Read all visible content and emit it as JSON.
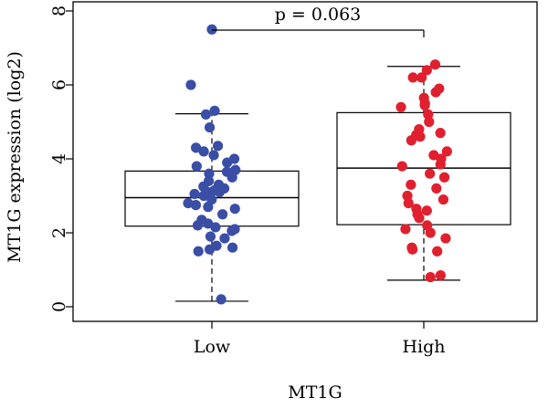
{
  "chart_data": {
    "type": "box",
    "xlabel": "MT1G",
    "ylabel": "MT1G expression (log2)",
    "categories": [
      "Low",
      "High"
    ],
    "ylim": [
      -0.2,
      8.2
    ],
    "yticks": [
      0,
      2,
      4,
      6,
      8
    ],
    "annotation": "p = 0.063",
    "boxes": [
      {
        "category": "Low",
        "whisker_low": 0.15,
        "q1": 2.18,
        "median": 2.95,
        "q3": 3.67,
        "whisker_high": 5.22,
        "outliers": [
          6.0,
          7.5
        ]
      },
      {
        "category": "High",
        "whisker_low": 0.72,
        "q1": 2.22,
        "median": 3.75,
        "q3": 5.25,
        "whisker_high": 6.5,
        "outliers": []
      }
    ],
    "series": [
      {
        "category": "Low",
        "color": "#3b4ea6",
        "points": [
          7.5,
          6.0,
          5.3,
          5.2,
          4.85,
          4.35,
          4.3,
          4.2,
          4.1,
          4.0,
          3.9,
          3.8,
          3.7,
          3.65,
          3.6,
          3.5,
          3.4,
          3.3,
          3.25,
          3.2,
          3.15,
          3.1,
          3.1,
          3.05,
          3.0,
          2.9,
          2.8,
          2.75,
          2.7,
          2.65,
          2.5,
          2.35,
          2.25,
          2.2,
          2.15,
          2.1,
          2.05,
          1.9,
          1.85,
          1.65,
          1.6,
          1.55,
          1.5,
          0.2
        ]
      },
      {
        "category": "High",
        "color": "#e0202e",
        "points": [
          6.55,
          6.4,
          6.2,
          6.2,
          5.9,
          5.8,
          5.65,
          5.5,
          5.45,
          5.4,
          5.2,
          5.0,
          4.8,
          4.7,
          4.65,
          4.6,
          4.5,
          4.2,
          4.1,
          4.0,
          3.85,
          3.8,
          3.6,
          3.5,
          3.3,
          3.2,
          3.0,
          2.9,
          2.8,
          2.65,
          2.6,
          2.5,
          2.4,
          2.2,
          2.1,
          2.0,
          1.85,
          1.6,
          1.55,
          1.5,
          0.85,
          0.8
        ]
      }
    ]
  }
}
